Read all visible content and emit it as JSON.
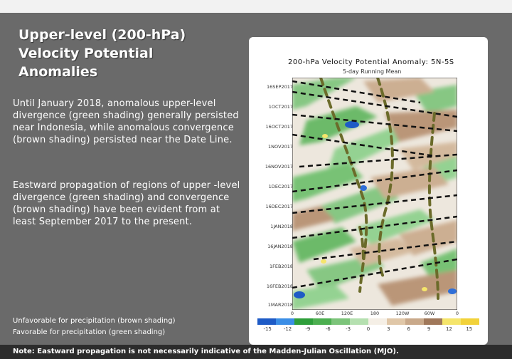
{
  "slide": {
    "title": "Upper-level (200-hPa) Velocity Potential Anomalies",
    "paragraph1": "Until January 2018, anomalous upper-level divergence (green shading) generally persisted near Indonesia, while anomalous convergence (brown shading) persisted near the Date Line.",
    "paragraph2": "Eastward propagation of regions of upper -level divergence (green shading) and convergence (brown shading) have been evident from at least September 2017 to the present.",
    "legend_unfavorable": "Unfavorable for precipitation (brown shading)",
    "legend_favorable": "Favorable for precipitation (green shading)",
    "note": "Note: Eastward propagation is not necessarily indicative of the Madden-Julian Oscillation (MJO)."
  },
  "figure": {
    "title": "200-hPa Velocity Potential Anomaly: 5N-5S",
    "subtitle": "5-day Running Mean",
    "y_labels": [
      "16SEP2017",
      "1OCT2017",
      "16OCT2017",
      "1NOV2017",
      "16NOV2017",
      "1DEC2017",
      "16DEC2017",
      "1JAN2018",
      "16JAN2018",
      "1FEB2018",
      "16FEB2018",
      "1MAR2018"
    ],
    "x_labels": [
      "0",
      "60E",
      "120E",
      "180",
      "120W",
      "60W",
      "0"
    ],
    "colorbar_labels": [
      "-15",
      "-12",
      "-9",
      "-6",
      "-3",
      "0",
      "3",
      "6",
      "9",
      "12",
      "15"
    ],
    "colors": {
      "divergence": "#4caf50",
      "convergence": "#a0785a",
      "strong_divergence": "#1e5bc6",
      "annotation_line": "#111111",
      "dashed_contour": "#6b6b2a"
    }
  }
}
